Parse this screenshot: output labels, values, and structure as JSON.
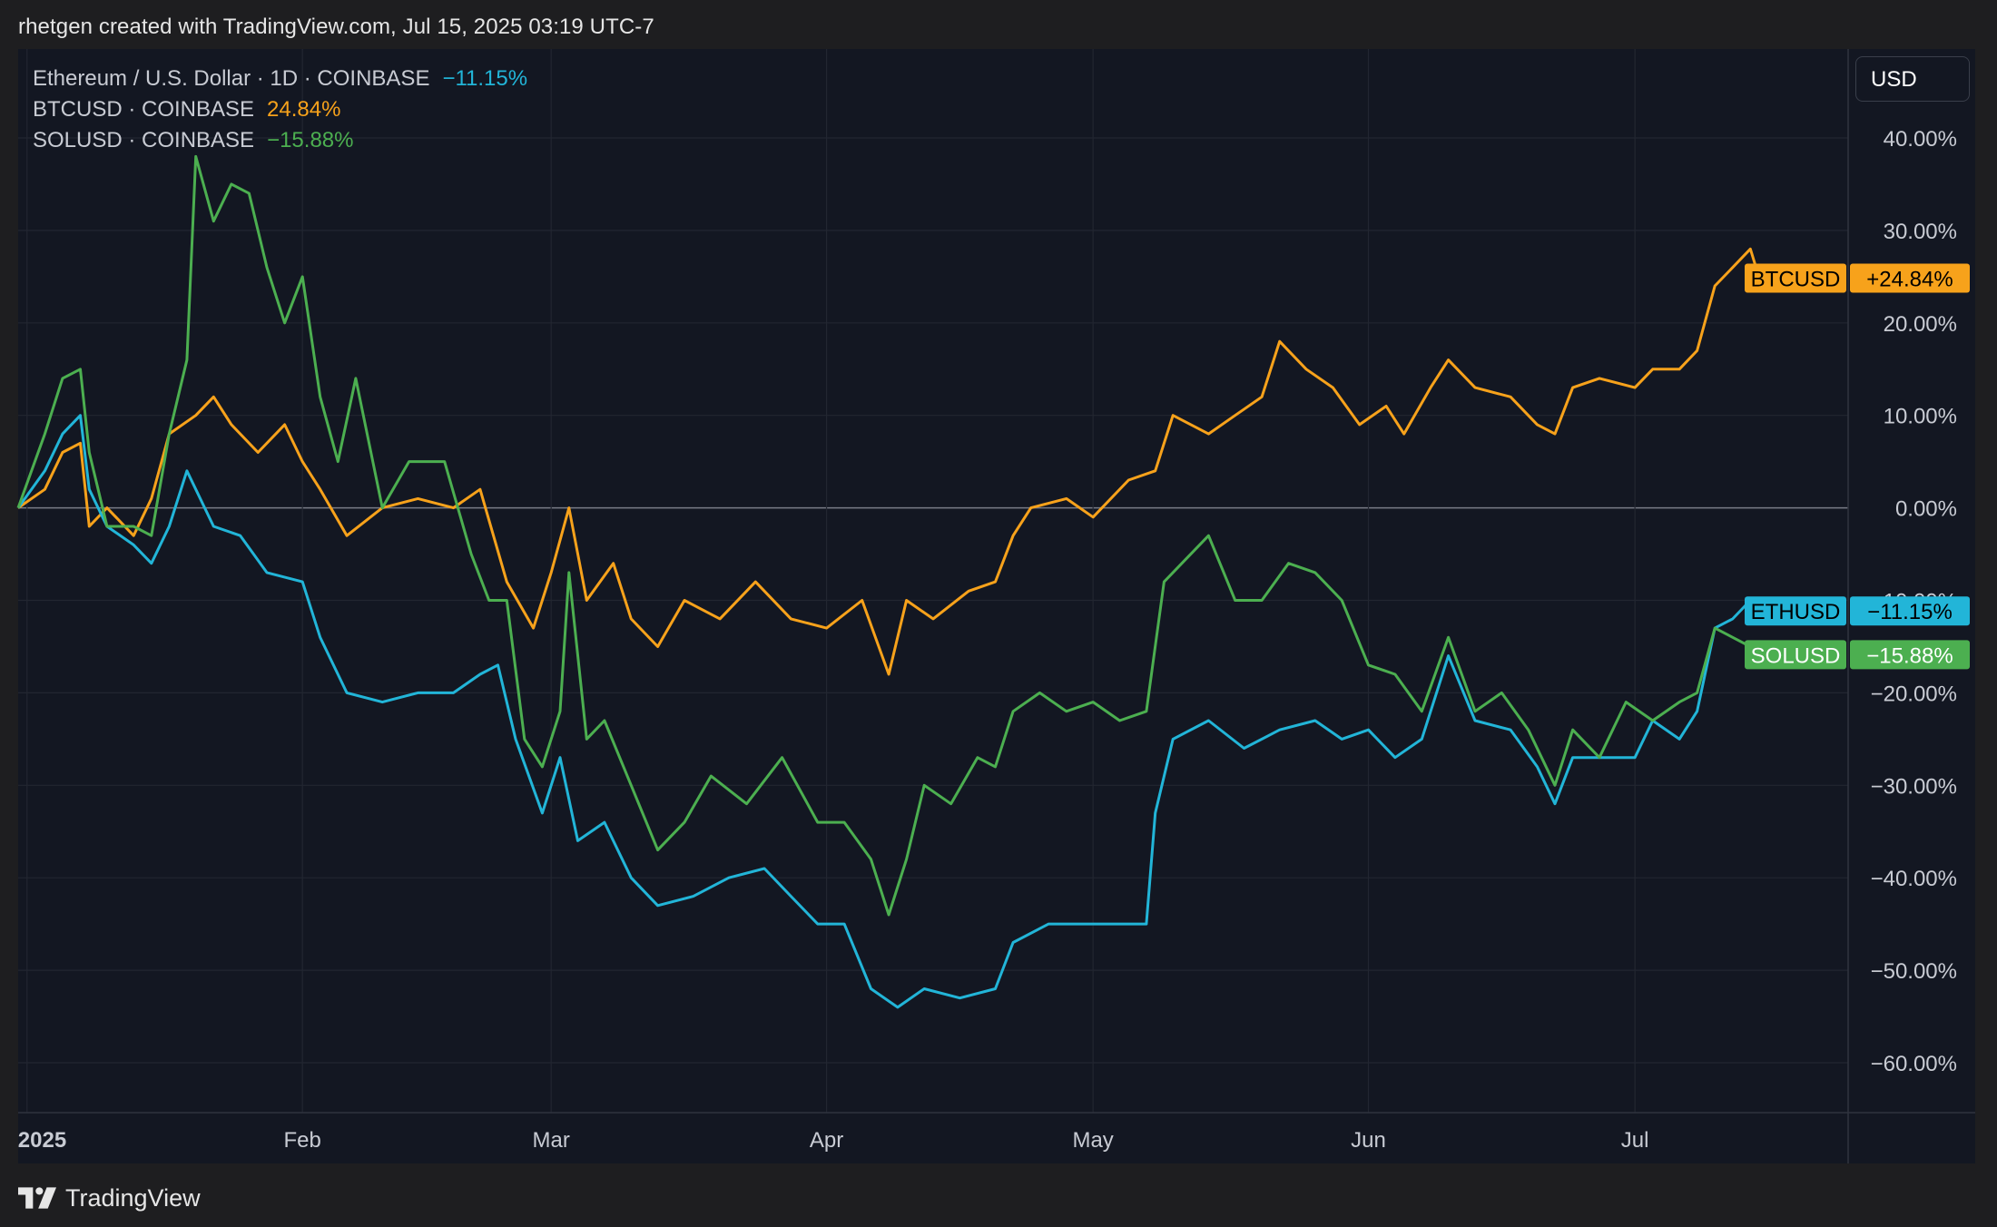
{
  "header": {
    "credit": "rhetgen created with TradingView.com, Jul 15, 2025 03:19 UTC-7"
  },
  "currency_button": {
    "label": "USD"
  },
  "footer": {
    "brand": "TradingView",
    "logo_icon": "tradingview-logo-icon"
  },
  "legend": [
    {
      "label": "Ethereum / U.S. Dollar · 1D · COINBASE",
      "value": "−11.15%",
      "color": "#22b5d8"
    },
    {
      "label": "BTCUSD · COINBASE",
      "value": "24.84%",
      "color": "#f7a21b"
    },
    {
      "label": "SOLUSD · COINBASE",
      "value": "−15.88%",
      "color": "#4caf50"
    }
  ],
  "chart_data": {
    "type": "line",
    "y_unit": "%",
    "ylim": [
      -65,
      40
    ],
    "y_ticks": [
      {
        "value": 40,
        "label": "40.00%"
      },
      {
        "value": 30,
        "label": "30.00%"
      },
      {
        "value": 20,
        "label": "20.00%"
      },
      {
        "value": 10,
        "label": "10.00%"
      },
      {
        "value": 0,
        "label": "0.00%"
      },
      {
        "value": -10,
        "label": "−10.00%"
      },
      {
        "value": -20,
        "label": "−20.00%"
      },
      {
        "value": -30,
        "label": "−30.00%"
      },
      {
        "value": -40,
        "label": "−40.00%"
      },
      {
        "value": -50,
        "label": "−50.00%"
      },
      {
        "value": -60,
        "label": "−60.00%"
      }
    ],
    "x_range": [
      "2024-12-31",
      "2025-07-25"
    ],
    "x_ticks": [
      {
        "date": "2025-01-01",
        "label": "2025"
      },
      {
        "date": "2025-02-01",
        "label": "Feb"
      },
      {
        "date": "2025-03-01",
        "label": "Mar"
      },
      {
        "date": "2025-04-01",
        "label": "Apr"
      },
      {
        "date": "2025-05-01",
        "label": "May"
      },
      {
        "date": "2025-06-01",
        "label": "Jun"
      },
      {
        "date": "2025-07-01",
        "label": "Jul"
      }
    ],
    "grid": true,
    "series": [
      {
        "name": "BTCUSD",
        "color": "#f7a21b",
        "last_label": "+24.84%",
        "points": [
          [
            "2024-12-31",
            0
          ],
          [
            "2025-01-03",
            2
          ],
          [
            "2025-01-05",
            6
          ],
          [
            "2025-01-07",
            7
          ],
          [
            "2025-01-08",
            -2
          ],
          [
            "2025-01-10",
            0
          ],
          [
            "2025-01-13",
            -3
          ],
          [
            "2025-01-15",
            1
          ],
          [
            "2025-01-17",
            8
          ],
          [
            "2025-01-20",
            10
          ],
          [
            "2025-01-22",
            12
          ],
          [
            "2025-01-24",
            9
          ],
          [
            "2025-01-27",
            6
          ],
          [
            "2025-01-30",
            9
          ],
          [
            "2025-02-01",
            5
          ],
          [
            "2025-02-03",
            2
          ],
          [
            "2025-02-06",
            -3
          ],
          [
            "2025-02-10",
            0
          ],
          [
            "2025-02-14",
            1
          ],
          [
            "2025-02-18",
            0
          ],
          [
            "2025-02-21",
            2
          ],
          [
            "2025-02-24",
            -8
          ],
          [
            "2025-02-27",
            -13
          ],
          [
            "2025-03-01",
            -7
          ],
          [
            "2025-03-03",
            0
          ],
          [
            "2025-03-05",
            -10
          ],
          [
            "2025-03-08",
            -6
          ],
          [
            "2025-03-10",
            -12
          ],
          [
            "2025-03-13",
            -15
          ],
          [
            "2025-03-16",
            -10
          ],
          [
            "2025-03-20",
            -12
          ],
          [
            "2025-03-24",
            -8
          ],
          [
            "2025-03-28",
            -12
          ],
          [
            "2025-04-01",
            -13
          ],
          [
            "2025-04-05",
            -10
          ],
          [
            "2025-04-08",
            -18
          ],
          [
            "2025-04-10",
            -10
          ],
          [
            "2025-04-13",
            -12
          ],
          [
            "2025-04-17",
            -9
          ],
          [
            "2025-04-20",
            -8
          ],
          [
            "2025-04-22",
            -3
          ],
          [
            "2025-04-24",
            0
          ],
          [
            "2025-04-28",
            1
          ],
          [
            "2025-05-01",
            -1
          ],
          [
            "2025-05-05",
            3
          ],
          [
            "2025-05-08",
            4
          ],
          [
            "2025-05-10",
            10
          ],
          [
            "2025-05-14",
            8
          ],
          [
            "2025-05-17",
            10
          ],
          [
            "2025-05-20",
            12
          ],
          [
            "2025-05-22",
            18
          ],
          [
            "2025-05-25",
            15
          ],
          [
            "2025-05-28",
            13
          ],
          [
            "2025-05-31",
            9
          ],
          [
            "2025-06-03",
            11
          ],
          [
            "2025-06-05",
            8
          ],
          [
            "2025-06-08",
            13
          ],
          [
            "2025-06-10",
            16
          ],
          [
            "2025-06-13",
            13
          ],
          [
            "2025-06-17",
            12
          ],
          [
            "2025-06-20",
            9
          ],
          [
            "2025-06-22",
            8
          ],
          [
            "2025-06-24",
            13
          ],
          [
            "2025-06-27",
            14
          ],
          [
            "2025-07-01",
            13
          ],
          [
            "2025-07-03",
            15
          ],
          [
            "2025-07-06",
            15
          ],
          [
            "2025-07-08",
            17
          ],
          [
            "2025-07-10",
            24
          ],
          [
            "2025-07-12",
            26
          ],
          [
            "2025-07-14",
            28
          ],
          [
            "2025-07-15",
            24.84
          ]
        ]
      },
      {
        "name": "ETHUSD",
        "color": "#22b5d8",
        "last_label": "−11.15%",
        "points": [
          [
            "2024-12-31",
            0
          ],
          [
            "2025-01-03",
            4
          ],
          [
            "2025-01-05",
            8
          ],
          [
            "2025-01-07",
            10
          ],
          [
            "2025-01-08",
            2
          ],
          [
            "2025-01-10",
            -2
          ],
          [
            "2025-01-13",
            -4
          ],
          [
            "2025-01-15",
            -6
          ],
          [
            "2025-01-17",
            -2
          ],
          [
            "2025-01-19",
            4
          ],
          [
            "2025-01-22",
            -2
          ],
          [
            "2025-01-25",
            -3
          ],
          [
            "2025-01-28",
            -7
          ],
          [
            "2025-02-01",
            -8
          ],
          [
            "2025-02-03",
            -14
          ],
          [
            "2025-02-06",
            -20
          ],
          [
            "2025-02-10",
            -21
          ],
          [
            "2025-02-14",
            -20
          ],
          [
            "2025-02-18",
            -20
          ],
          [
            "2025-02-21",
            -18
          ],
          [
            "2025-02-23",
            -17
          ],
          [
            "2025-02-25",
            -25
          ],
          [
            "2025-02-28",
            -33
          ],
          [
            "2025-03-02",
            -27
          ],
          [
            "2025-03-04",
            -36
          ],
          [
            "2025-03-07",
            -34
          ],
          [
            "2025-03-10",
            -40
          ],
          [
            "2025-03-13",
            -43
          ],
          [
            "2025-03-17",
            -42
          ],
          [
            "2025-03-21",
            -40
          ],
          [
            "2025-03-25",
            -39
          ],
          [
            "2025-03-28",
            -42
          ],
          [
            "2025-03-31",
            -45
          ],
          [
            "2025-04-03",
            -45
          ],
          [
            "2025-04-06",
            -52
          ],
          [
            "2025-04-09",
            -54
          ],
          [
            "2025-04-12",
            -52
          ],
          [
            "2025-04-16",
            -53
          ],
          [
            "2025-04-20",
            -52
          ],
          [
            "2025-04-22",
            -47
          ],
          [
            "2025-04-26",
            -45
          ],
          [
            "2025-04-30",
            -45
          ],
          [
            "2025-05-04",
            -45
          ],
          [
            "2025-05-07",
            -45
          ],
          [
            "2025-05-08",
            -33
          ],
          [
            "2025-05-10",
            -25
          ],
          [
            "2025-05-14",
            -23
          ],
          [
            "2025-05-18",
            -26
          ],
          [
            "2025-05-22",
            -24
          ],
          [
            "2025-05-26",
            -23
          ],
          [
            "2025-05-29",
            -25
          ],
          [
            "2025-06-01",
            -24
          ],
          [
            "2025-06-04",
            -27
          ],
          [
            "2025-06-07",
            -25
          ],
          [
            "2025-06-10",
            -16
          ],
          [
            "2025-06-13",
            -23
          ],
          [
            "2025-06-17",
            -24
          ],
          [
            "2025-06-20",
            -28
          ],
          [
            "2025-06-22",
            -32
          ],
          [
            "2025-06-24",
            -27
          ],
          [
            "2025-06-27",
            -27
          ],
          [
            "2025-07-01",
            -27
          ],
          [
            "2025-07-03",
            -23
          ],
          [
            "2025-07-06",
            -25
          ],
          [
            "2025-07-08",
            -22
          ],
          [
            "2025-07-10",
            -13
          ],
          [
            "2025-07-12",
            -12
          ],
          [
            "2025-07-14",
            -10
          ],
          [
            "2025-07-15",
            -11.15
          ]
        ]
      },
      {
        "name": "SOLUSD",
        "color": "#4caf50",
        "last_label": "−15.88%",
        "points": [
          [
            "2024-12-31",
            0
          ],
          [
            "2025-01-03",
            8
          ],
          [
            "2025-01-05",
            14
          ],
          [
            "2025-01-07",
            15
          ],
          [
            "2025-01-08",
            6
          ],
          [
            "2025-01-10",
            -2
          ],
          [
            "2025-01-13",
            -2
          ],
          [
            "2025-01-15",
            -3
          ],
          [
            "2025-01-17",
            8
          ],
          [
            "2025-01-19",
            16
          ],
          [
            "2025-01-20",
            38
          ],
          [
            "2025-01-22",
            31
          ],
          [
            "2025-01-24",
            35
          ],
          [
            "2025-01-26",
            34
          ],
          [
            "2025-01-28",
            26
          ],
          [
            "2025-01-30",
            20
          ],
          [
            "2025-02-01",
            25
          ],
          [
            "2025-02-03",
            12
          ],
          [
            "2025-02-05",
            5
          ],
          [
            "2025-02-07",
            14
          ],
          [
            "2025-02-10",
            0
          ],
          [
            "2025-02-13",
            5
          ],
          [
            "2025-02-17",
            5
          ],
          [
            "2025-02-20",
            -5
          ],
          [
            "2025-02-22",
            -10
          ],
          [
            "2025-02-24",
            -10
          ],
          [
            "2025-02-26",
            -25
          ],
          [
            "2025-02-28",
            -28
          ],
          [
            "2025-03-02",
            -22
          ],
          [
            "2025-03-03",
            -7
          ],
          [
            "2025-03-05",
            -25
          ],
          [
            "2025-03-07",
            -23
          ],
          [
            "2025-03-10",
            -30
          ],
          [
            "2025-03-13",
            -37
          ],
          [
            "2025-03-16",
            -34
          ],
          [
            "2025-03-19",
            -29
          ],
          [
            "2025-03-23",
            -32
          ],
          [
            "2025-03-27",
            -27
          ],
          [
            "2025-03-31",
            -34
          ],
          [
            "2025-04-03",
            -34
          ],
          [
            "2025-04-06",
            -38
          ],
          [
            "2025-04-08",
            -44
          ],
          [
            "2025-04-10",
            -38
          ],
          [
            "2025-04-12",
            -30
          ],
          [
            "2025-04-15",
            -32
          ],
          [
            "2025-04-18",
            -27
          ],
          [
            "2025-04-20",
            -28
          ],
          [
            "2025-04-22",
            -22
          ],
          [
            "2025-04-25",
            -20
          ],
          [
            "2025-04-28",
            -22
          ],
          [
            "2025-05-01",
            -21
          ],
          [
            "2025-05-04",
            -23
          ],
          [
            "2025-05-07",
            -22
          ],
          [
            "2025-05-09",
            -8
          ],
          [
            "2025-05-11",
            -6
          ],
          [
            "2025-05-14",
            -3
          ],
          [
            "2025-05-17",
            -10
          ],
          [
            "2025-05-20",
            -10
          ],
          [
            "2025-05-23",
            -6
          ],
          [
            "2025-05-26",
            -7
          ],
          [
            "2025-05-29",
            -10
          ],
          [
            "2025-06-01",
            -17
          ],
          [
            "2025-06-04",
            -18
          ],
          [
            "2025-06-07",
            -22
          ],
          [
            "2025-06-10",
            -14
          ],
          [
            "2025-06-13",
            -22
          ],
          [
            "2025-06-16",
            -20
          ],
          [
            "2025-06-19",
            -24
          ],
          [
            "2025-06-22",
            -30
          ],
          [
            "2025-06-24",
            -24
          ],
          [
            "2025-06-27",
            -27
          ],
          [
            "2025-06-30",
            -21
          ],
          [
            "2025-07-03",
            -23
          ],
          [
            "2025-07-06",
            -21
          ],
          [
            "2025-07-08",
            -20
          ],
          [
            "2025-07-10",
            -13
          ],
          [
            "2025-07-12",
            -14
          ],
          [
            "2025-07-14",
            -15
          ],
          [
            "2025-07-15",
            -15.88
          ]
        ]
      }
    ],
    "price_labels": [
      {
        "name": "BTCUSD",
        "value_label": "+24.84%",
        "value": 24.84,
        "color": "#f7a21b",
        "text_color": "#000000"
      },
      {
        "name": "ETHUSD",
        "value_label": "−11.15%",
        "value": -11.15,
        "color": "#22b5d8",
        "text_color": "#000000"
      },
      {
        "name": "SOLUSD",
        "value_label": "−15.88%",
        "value": -15.88,
        "color": "#4caf50",
        "text_color": "#ffffff"
      }
    ]
  }
}
